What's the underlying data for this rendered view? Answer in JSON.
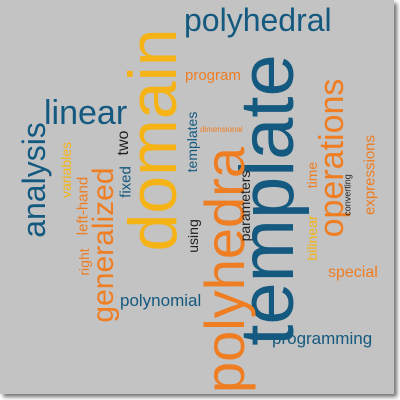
{
  "colors": {
    "background": "#c3c3c3",
    "blue": "#14597f",
    "orange": "#ef7d22",
    "yellow": "#f5b316",
    "black": "#1f1f1f"
  },
  "words": {
    "polyhedral": "polyhedral",
    "domain": "domain",
    "template": "template",
    "polyhedra": "polyhedra",
    "operations": "operations",
    "linear": "linear",
    "analysis": "analysis",
    "generalized": "generalized",
    "program": "program",
    "templates_top": "templates",
    "two": "two",
    "fixed": "fixed",
    "variables": "variables",
    "left_hand": "left-hand",
    "right": "right",
    "using": "using",
    "parameters": "parameters",
    "time": "time",
    "bilinear": "bilinear",
    "converting": "converting",
    "expressions": "expressions",
    "dimensional": "dimensional",
    "polynomial": "polynomial",
    "special": "special",
    "programming": "programming"
  }
}
